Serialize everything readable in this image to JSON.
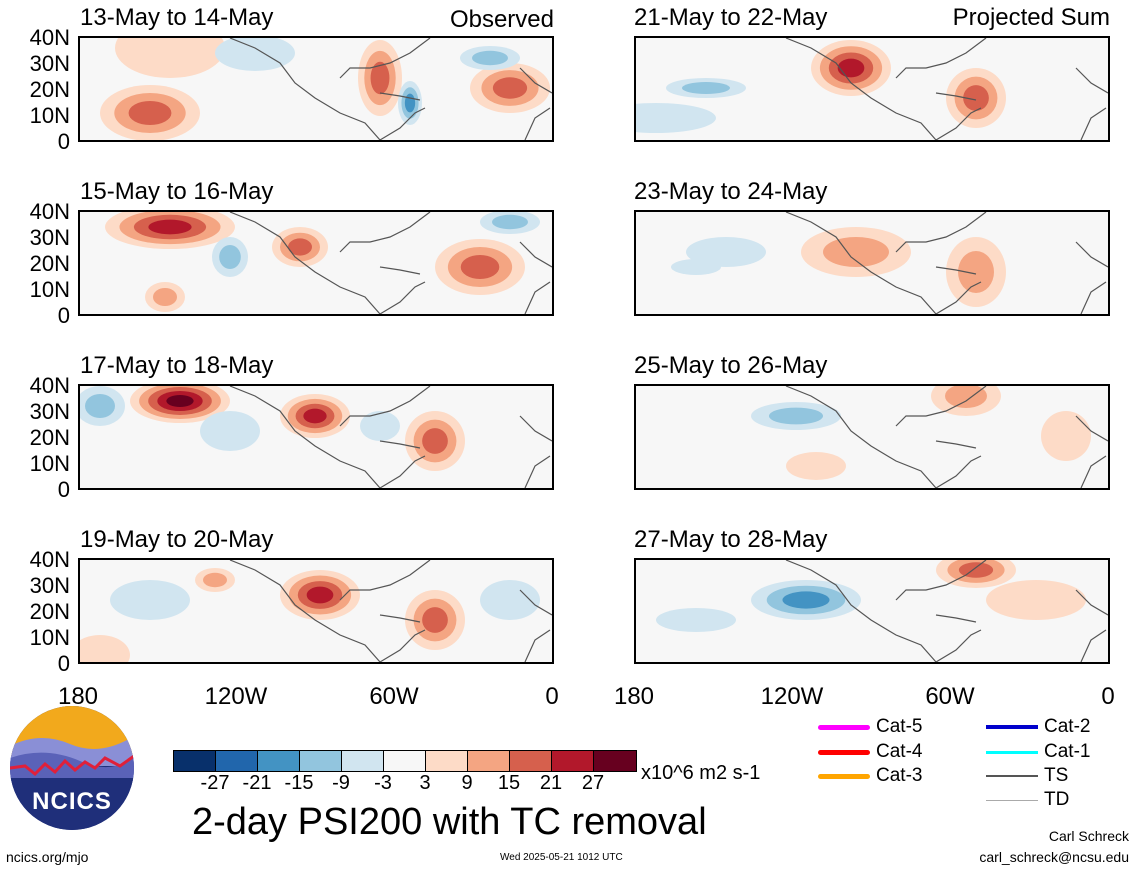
{
  "panels": [
    {
      "title": "13-May to 14-May",
      "tag": "Observed"
    },
    {
      "title": "21-May to 22-May",
      "tag": "Projected Sum"
    },
    {
      "title": "15-May to 16-May",
      "tag": ""
    },
    {
      "title": "23-May to 24-May",
      "tag": ""
    },
    {
      "title": "17-May to 18-May",
      "tag": ""
    },
    {
      "title": "25-May to 26-May",
      "tag": ""
    },
    {
      "title": "19-May to 20-May",
      "tag": ""
    },
    {
      "title": "27-May to 28-May",
      "tag": ""
    }
  ],
  "y_ticks": [
    "40N",
    "30N",
    "20N",
    "10N",
    "0"
  ],
  "x_ticks": [
    "180",
    "120W",
    "60W",
    "0"
  ],
  "colorbar": {
    "colors": [
      "#08306b",
      "#2166ac",
      "#4393c3",
      "#92c5de",
      "#d1e5f0",
      "#f7f7f7",
      "#fddbc7",
      "#f4a582",
      "#d6604d",
      "#b2182b",
      "#67001f"
    ],
    "ticks": [
      "-27",
      "-21",
      "-15",
      "-9",
      "-3",
      "3",
      "9",
      "15",
      "21",
      "27"
    ],
    "units": "x10^6 m2 s-1"
  },
  "title": "2-day PSI200 with TC removal",
  "legend": [
    {
      "label": "Cat-5",
      "color": "#ff00ff"
    },
    {
      "label": "Cat-4",
      "color": "#ff0000"
    },
    {
      "label": "Cat-3",
      "color": "#ffa500"
    },
    {
      "label": "Cat-2",
      "color": "#0000cc"
    },
    {
      "label": "Cat-1",
      "color": "#00ffff"
    },
    {
      "label": "TS",
      "color": "#555555"
    },
    {
      "label": "TD",
      "color": "#aaaaaa"
    }
  ],
  "logo": {
    "text": "NCICS"
  },
  "footer": {
    "url": "ncics.org/mjo",
    "timestamp": "Wed 2025-05-21 1012 UTC",
    "author": "Carl Schreck",
    "email": "carl_schreck@ncsu.edu"
  }
}
